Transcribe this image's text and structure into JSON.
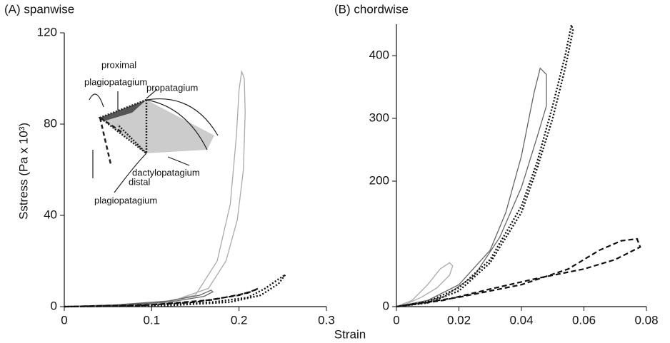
{
  "chart_data": [
    {
      "type": "line",
      "title": "(A)  spanwise",
      "xlabel": "Strain",
      "ylabel": "Sstress (Pa x 10³)",
      "xlim": [
        0,
        0.3
      ],
      "ylim": [
        0,
        120
      ],
      "xticks": [
        0,
        0.1,
        0.2,
        0.3
      ],
      "yticks": [
        0,
        40,
        80,
        120
      ],
      "annotations": [
        "proximal",
        "plagiopatagium",
        "propatagium",
        "dactylopatagium",
        "distal",
        "plagiopatagium"
      ],
      "series": [
        {
          "color": "#aaaaaa",
          "dash": "solid",
          "x": [
            0,
            0.05,
            0.1,
            0.15,
            0.175,
            0.19,
            0.197,
            0.2,
            0.203,
            0.206,
            0.207,
            0.205,
            0.198,
            0.185,
            0.165,
            0.12,
            0.06,
            0
          ],
          "values": [
            0,
            0.3,
            1,
            5,
            20,
            45,
            75,
            95,
            103,
            100,
            85,
            60,
            38,
            20,
            8,
            2,
            0.5,
            0
          ]
        },
        {
          "color": "#666666",
          "dash": "solid",
          "x": [
            0,
            0.06,
            0.12,
            0.16,
            0.17,
            0.168,
            0.155,
            0.12,
            0.06,
            0
          ],
          "values": [
            0,
            0.5,
            2,
            4.5,
            6.5,
            7.2,
            5,
            2.5,
            0.8,
            0
          ]
        },
        {
          "color": "#111111",
          "dash": "dotted",
          "x": [
            0,
            0.1,
            0.17,
            0.21,
            0.23,
            0.245,
            0.253,
            0.245,
            0.225,
            0.19,
            0.12,
            0
          ],
          "values": [
            0,
            0.5,
            2,
            4,
            8,
            12,
            14,
            10,
            5,
            2,
            0.5,
            0
          ]
        },
        {
          "color": "#111111",
          "dash": "dashed",
          "x": [
            0,
            0.08,
            0.15,
            0.2,
            0.22,
            0.222,
            0.21,
            0.17,
            0.1,
            0
          ],
          "values": [
            0,
            0.3,
            2,
            5,
            7.5,
            8,
            6,
            3,
            0.8,
            0
          ]
        }
      ]
    },
    {
      "type": "line",
      "title": "(B)  chordwise",
      "xlim": [
        0,
        0.08
      ],
      "ylim": [
        0,
        450
      ],
      "xticks": [
        0,
        0.02,
        0.04,
        0.06,
        0.08
      ],
      "yticks": [
        0,
        200,
        300,
        400
      ],
      "series": [
        {
          "color": "#aaaaaa",
          "dash": "solid",
          "x": [
            0,
            0.005,
            0.01,
            0.014,
            0.017,
            0.018,
            0.017,
            0.013,
            0.008,
            0.003,
            0
          ],
          "values": [
            0,
            10,
            35,
            60,
            70,
            65,
            50,
            30,
            15,
            4,
            0
          ]
        },
        {
          "color": "#666666",
          "dash": "solid",
          "x": [
            0,
            0.01,
            0.02,
            0.03,
            0.035,
            0.04,
            0.044,
            0.046,
            0.048,
            0.048,
            0.045,
            0.04,
            0.033,
            0.025,
            0.015,
            0
          ],
          "values": [
            0,
            10,
            35,
            90,
            150,
            240,
            340,
            380,
            370,
            320,
            270,
            190,
            110,
            50,
            15,
            0
          ]
        },
        {
          "color": "#111111",
          "dash": "dotted",
          "x": [
            0,
            0.01,
            0.02,
            0.03,
            0.04,
            0.045,
            0.05,
            0.054,
            0.056,
            0.0565,
            0.054,
            0.05,
            0.045,
            0.04,
            0.03,
            0.02,
            0.01,
            0
          ],
          "values": [
            0,
            8,
            30,
            75,
            160,
            230,
            320,
            400,
            449,
            440,
            380,
            300,
            220,
            150,
            70,
            25,
            6,
            0
          ]
        },
        {
          "color": "#111111",
          "dash": "dashed",
          "x": [
            0,
            0.02,
            0.04,
            0.055,
            0.065,
            0.072,
            0.077,
            0.078,
            0.07,
            0.06,
            0.045,
            0.03,
            0.015,
            0
          ],
          "values": [
            0,
            15,
            35,
            60,
            90,
            105,
            108,
            95,
            75,
            60,
            45,
            28,
            10,
            0
          ]
        }
      ]
    }
  ]
}
